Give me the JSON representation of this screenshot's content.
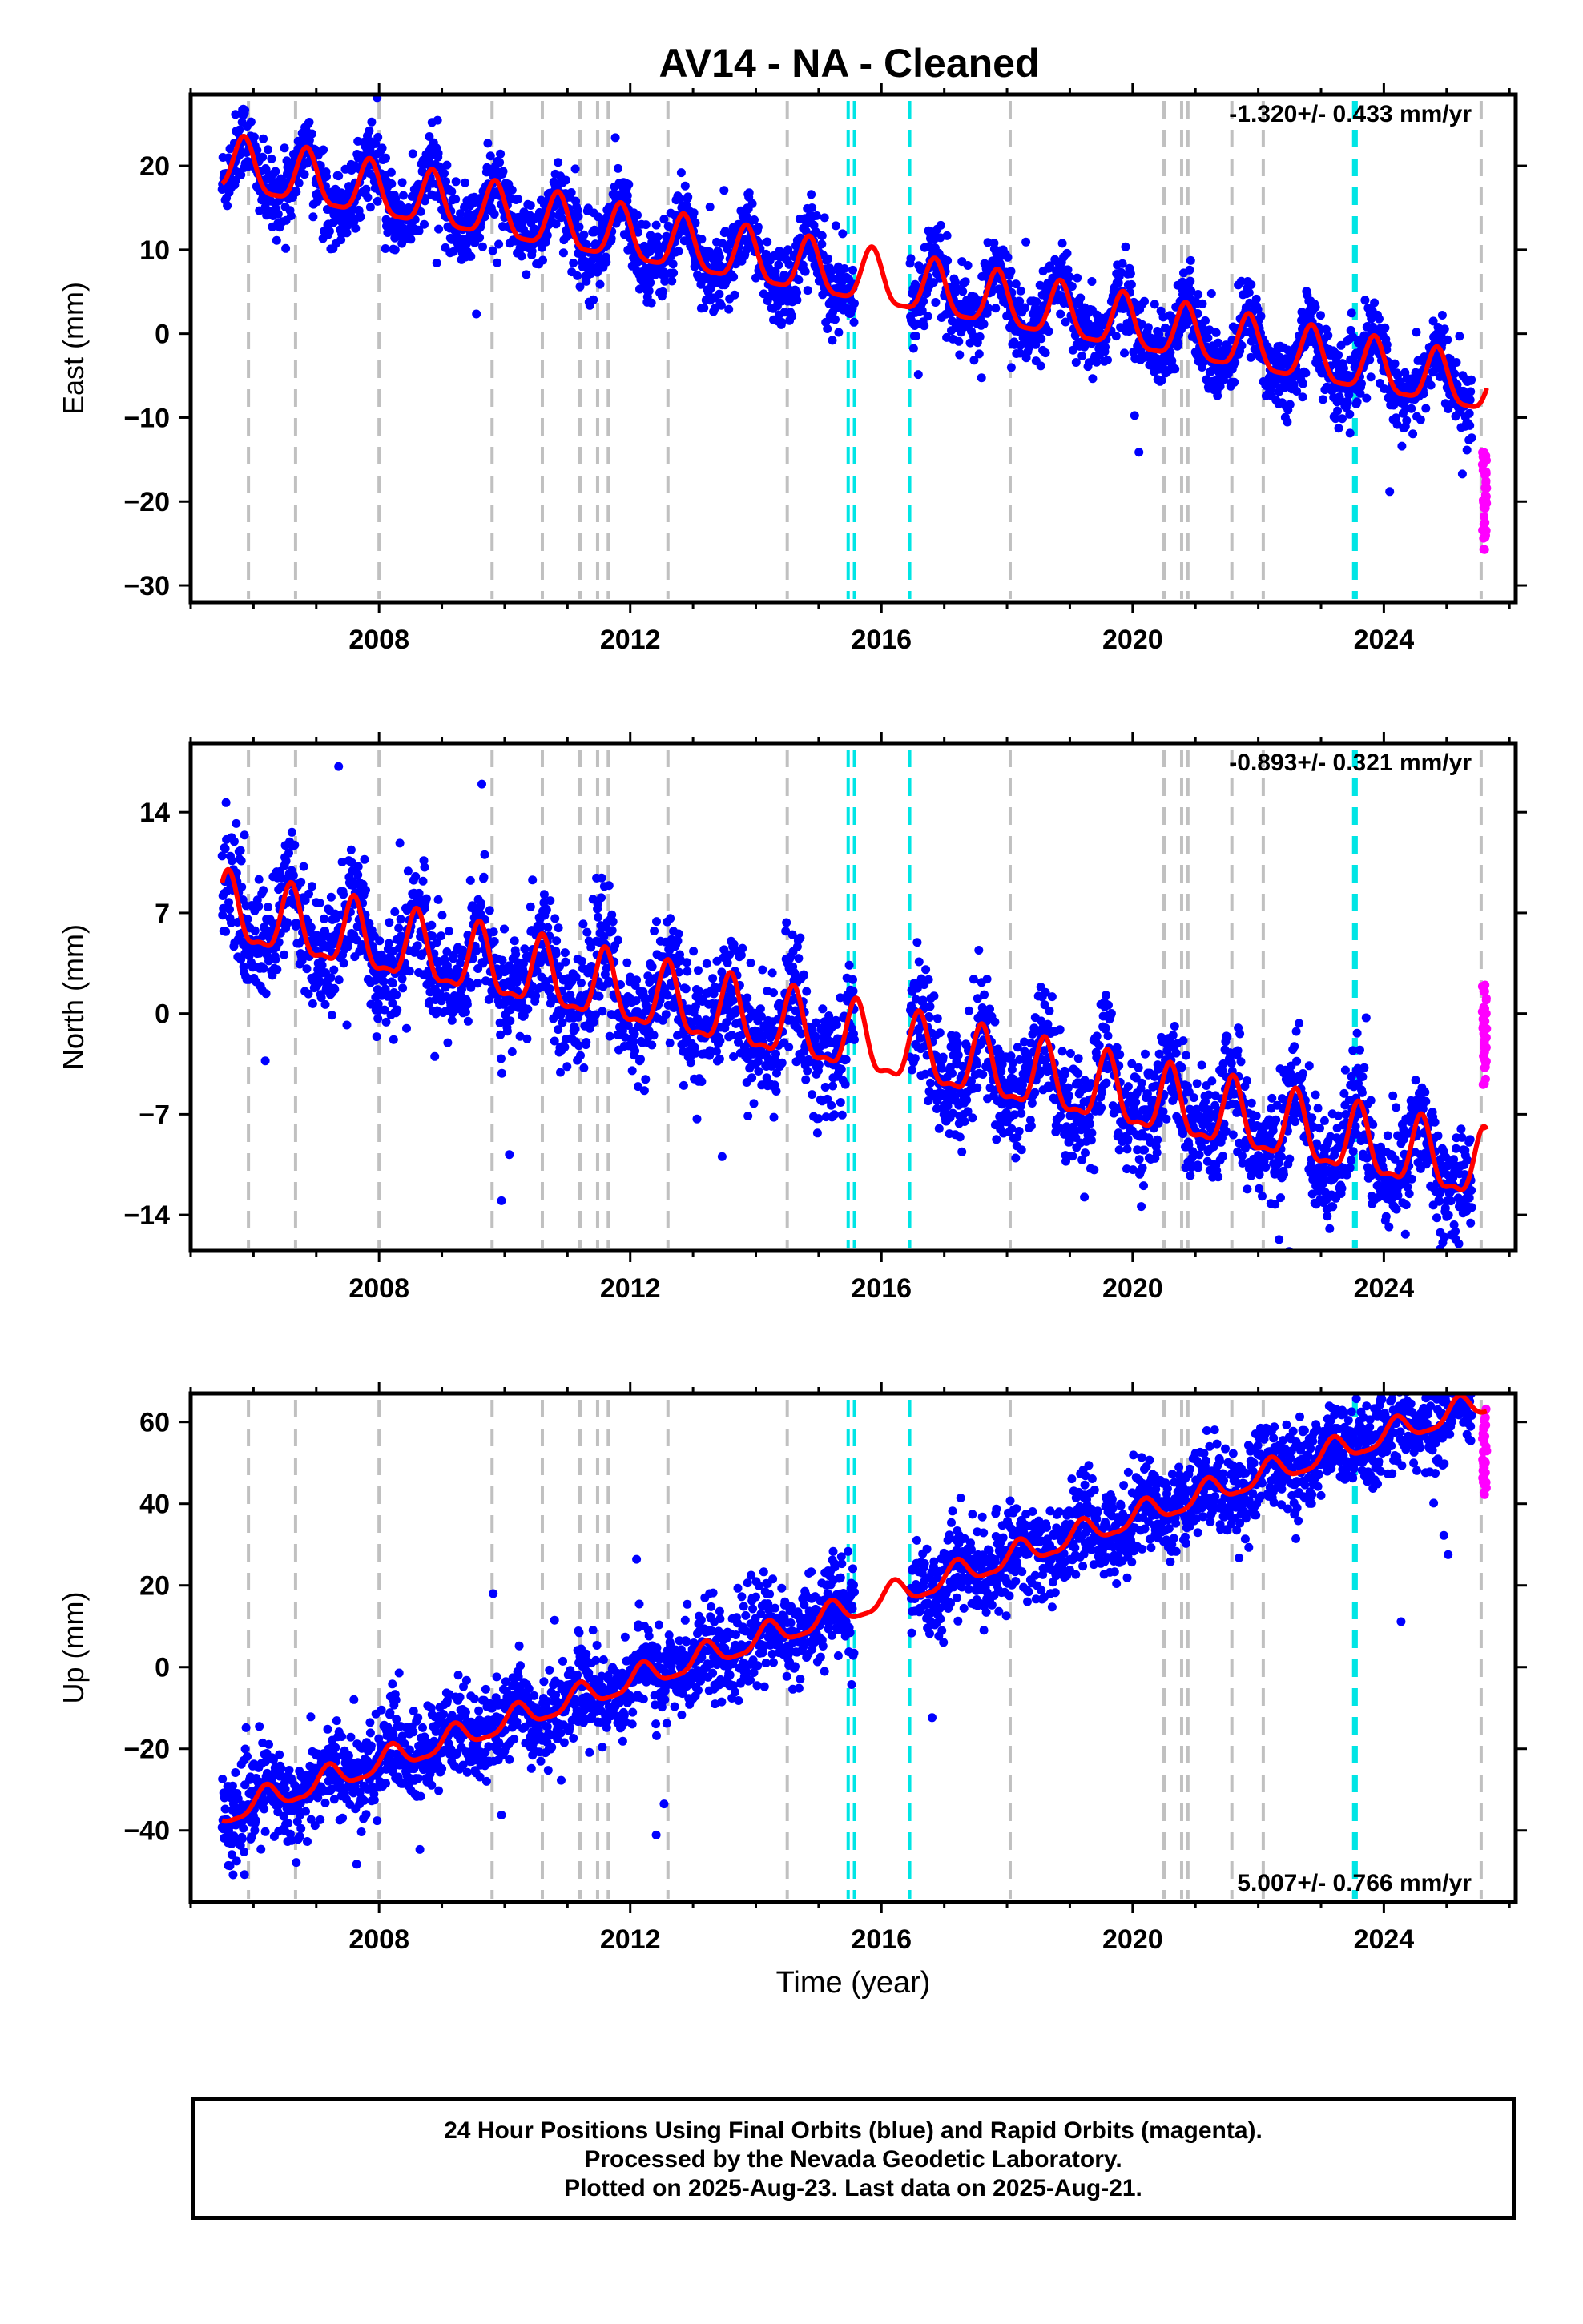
{
  "figure": {
    "title": "AV14  - NA - Cleaned",
    "xlabel": "Time (year)",
    "caption": {
      "line1": "24 Hour Positions Using Final Orbits (blue) and Rapid Orbits (magenta).",
      "line2": "Processed by the Nevada Geodetic Laboratory.",
      "line3": "Plotted on 2025-Aug-23. Last data on 2025-Aug-21."
    }
  },
  "colors": {
    "final_orbits": "#0000ff",
    "rapid_orbits": "#ff00ff",
    "model_fit": "#ff0000",
    "equipment_change_lines": "#c0c0c0",
    "earthquake_lines": "#00e5e5",
    "axes": "#000000"
  },
  "chart_data": [
    {
      "type": "scatter",
      "id": "east",
      "ylabel": "East (mm)",
      "rate_text": "-1.320+/- 0.433 mm/yr",
      "rate_position": "top-right",
      "xlim": [
        2005.0,
        2026.1
      ],
      "ylim": [
        -32,
        28.5
      ],
      "xticks": [
        2008,
        2012,
        2016,
        2020,
        2024
      ],
      "yticks": [
        20,
        10,
        0,
        -10,
        -20,
        -30
      ],
      "data_span": [
        2005.5,
        2025.64
      ],
      "gap": [
        2015.57,
        2016.45
      ],
      "model": {
        "intercept_at_start": 20.0,
        "rate_mm_per_yr": -1.32,
        "seasonal_amplitude": 3.2,
        "phase_peak_year_fraction": 0.85
      },
      "offsets": [
        {
          "year": 2009.8,
          "value": 0
        }
      ],
      "series": [
        {
          "name": "Final Orbits",
          "color": "#0000ff",
          "scatter_sd": 2.2
        },
        {
          "name": "Rapid Orbits",
          "color": "#ff00ff",
          "range": [
            2025.4,
            2025.64
          ],
          "values_range": [
            -26,
            -14
          ]
        }
      ]
    },
    {
      "type": "scatter",
      "id": "north",
      "ylabel": "North (mm)",
      "rate_text": "-0.893+/- 0.321 mm/yr",
      "rate_position": "top-right",
      "xlim": [
        2005.0,
        2026.1
      ],
      "ylim": [
        -16.5,
        18.8
      ],
      "xticks": [
        2008,
        2012,
        2016,
        2020,
        2024
      ],
      "yticks": [
        14,
        7,
        0,
        -7,
        -14
      ],
      "data_span": [
        2005.5,
        2025.64
      ],
      "gap": [
        2015.57,
        2016.45
      ],
      "model": {
        "intercept_at_start": 7.0,
        "rate_mm_per_yr": -0.893,
        "seasonal_amplitude": 2.3,
        "phase_peak_year_fraction": 0.6
      },
      "series": [
        {
          "name": "Final Orbits",
          "color": "#0000ff",
          "scatter_sd": 2.0
        },
        {
          "name": "Rapid Orbits",
          "color": "#ff00ff",
          "range": [
            2025.4,
            2025.64
          ],
          "values_range": [
            -5,
            2
          ]
        }
      ]
    },
    {
      "type": "scatter",
      "id": "up",
      "ylabel": "Up (mm)",
      "rate_text": "5.007+/- 0.766 mm/yr",
      "rate_position": "bottom-right",
      "xlim": [
        2005.0,
        2026.1
      ],
      "ylim": [
        -57.5,
        67
      ],
      "xticks": [
        2008,
        2012,
        2016,
        2020,
        2024
      ],
      "yticks": [
        60,
        40,
        20,
        0,
        -20,
        -40
      ],
      "data_span": [
        2005.5,
        2025.64
      ],
      "gap": [
        2015.57,
        2016.45
      ],
      "model": {
        "intercept_at_start": -36.0,
        "rate_mm_per_yr": 5.007,
        "seasonal_amplitude": 3.0,
        "phase_peak_year_fraction": 0.2
      },
      "series": [
        {
          "name": "Final Orbits",
          "color": "#0000ff",
          "scatter_sd": 5.5
        },
        {
          "name": "Rapid Orbits",
          "color": "#ff00ff",
          "range": [
            2025.4,
            2025.64
          ],
          "values_range": [
            42,
            64
          ]
        }
      ]
    }
  ],
  "event_lines": {
    "equipment_years": [
      2005.92,
      2006.67,
      2008.0,
      2009.8,
      2010.6,
      2011.2,
      2011.48,
      2011.65,
      2012.6,
      2014.5,
      2018.05,
      2020.5,
      2020.78,
      2020.88,
      2021.58,
      2022.08,
      2025.55
    ],
    "earthquake_years": [
      2015.47,
      2015.57,
      2016.45,
      2023.52,
      2023.56
    ]
  }
}
